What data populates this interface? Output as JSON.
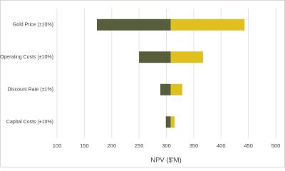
{
  "chart_data": {
    "type": "tornado",
    "categories": [
      "Gold Price (±10%)",
      "Operating Costs (±10%)",
      "Discount Rate (±1%)",
      "Capital Costs (±10%)"
    ],
    "base": 308,
    "series": [
      {
        "color": "#565e3c",
        "values": [
          173,
          250,
          289,
          299
        ]
      },
      {
        "color": "#e0c01f",
        "values": [
          443,
          367,
          329,
          315
        ]
      }
    ],
    "xlabel": "NPV ($'M)",
    "xlim": [
      100,
      500
    ],
    "xticks": [
      100,
      150,
      200,
      250,
      300,
      350,
      400,
      450,
      500
    ],
    "grid": true
  }
}
